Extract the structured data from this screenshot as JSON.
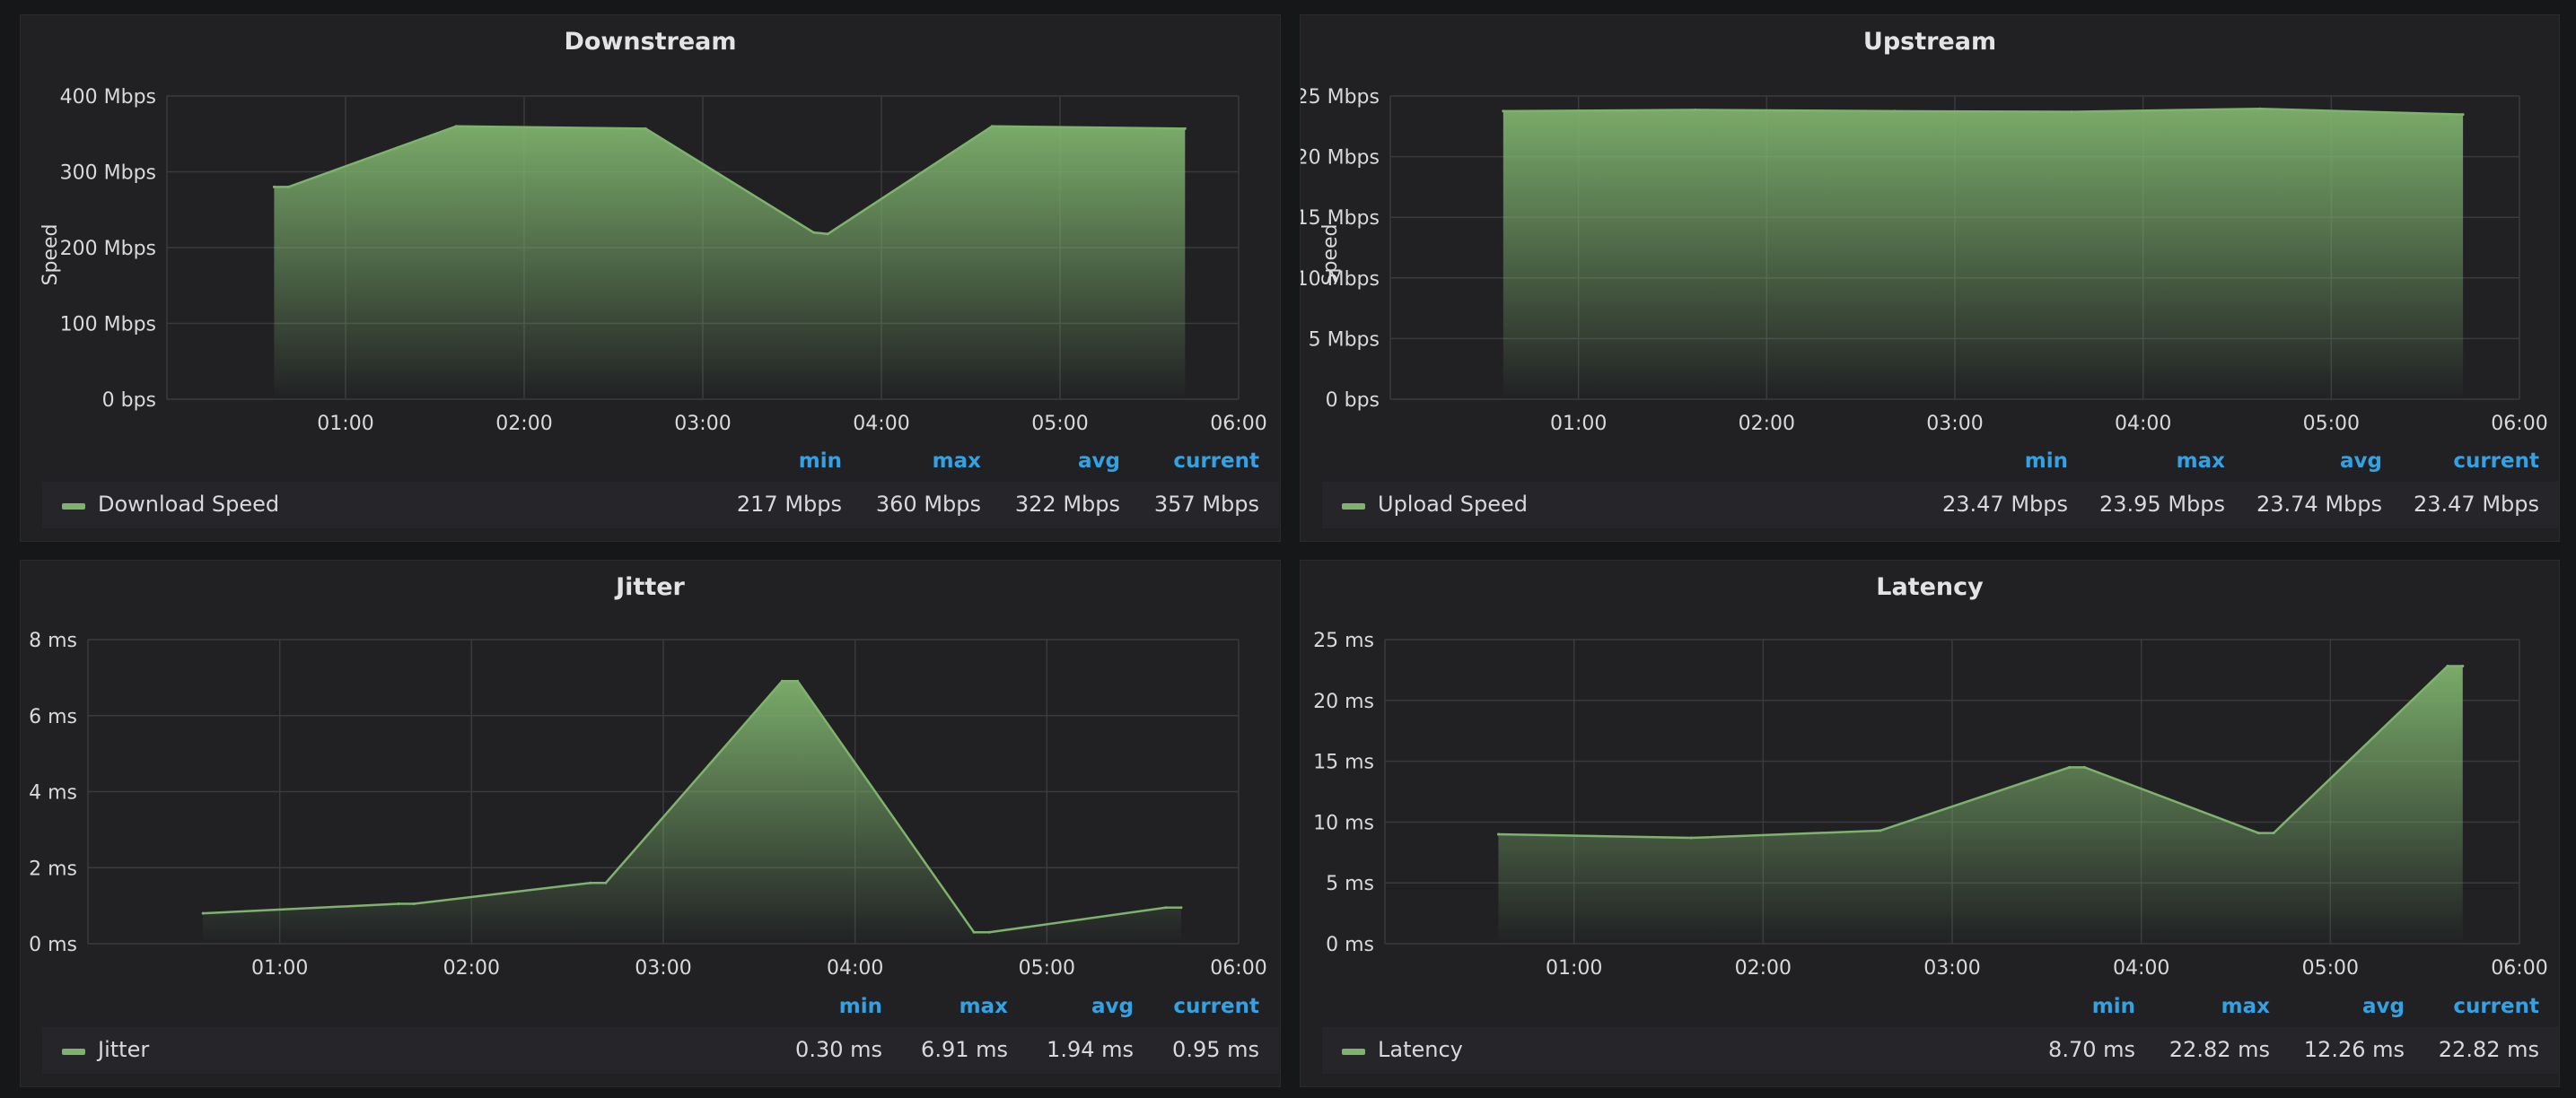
{
  "colors": {
    "series": "#7eb26d",
    "grid": "#3a3a3d",
    "legend_header": "#33a2e5"
  },
  "legend_headers": {
    "min": "min",
    "max": "max",
    "avg": "avg",
    "current": "current"
  },
  "panels": {
    "downstream": {
      "title": "Downstream",
      "legend": {
        "name": "Download Speed",
        "min": "217 Mbps",
        "max": "360 Mbps",
        "avg": "322 Mbps",
        "current": "357 Mbps"
      }
    },
    "upstream": {
      "title": "Upstream",
      "legend": {
        "name": "Upload Speed",
        "min": "23.47 Mbps",
        "max": "23.95 Mbps",
        "avg": "23.74 Mbps",
        "current": "23.47 Mbps"
      }
    },
    "jitter": {
      "title": "Jitter",
      "legend": {
        "name": "Jitter",
        "min": "0.30 ms",
        "max": "6.91 ms",
        "avg": "1.94 ms",
        "current": "0.95 ms"
      }
    },
    "latency": {
      "title": "Latency",
      "legend": {
        "name": "Latency",
        "min": "8.70 ms",
        "max": "22.82 ms",
        "avg": "12.26 ms",
        "current": "22.82 ms"
      }
    }
  },
  "chart_data": [
    {
      "type": "area",
      "title": "Downstream",
      "ylabel": "Speed",
      "xlim": [
        0.0,
        6.0
      ],
      "ylim": [
        0,
        400
      ],
      "x_ticks": [
        1,
        2,
        3,
        4,
        5,
        6
      ],
      "x_tick_labels": [
        "01:00",
        "02:00",
        "03:00",
        "04:00",
        "05:00",
        "06:00"
      ],
      "y_ticks": [
        0,
        100,
        200,
        300,
        400
      ],
      "y_tick_labels": [
        "0 bps",
        "100 Mbps",
        "200 Mbps",
        "300 Mbps",
        "400 Mbps"
      ],
      "grid": true,
      "legend_position": "bottom",
      "series": [
        {
          "name": "Download Speed",
          "x": [
            0.6,
            0.68,
            1.62,
            2.68,
            3.62,
            3.7,
            4.62,
            5.7
          ],
          "y": [
            280,
            280,
            360,
            357,
            220,
            218,
            360,
            357
          ]
        }
      ]
    },
    {
      "type": "area",
      "title": "Upstream",
      "ylabel": "Speed",
      "xlim": [
        0.0,
        6.0
      ],
      "ylim": [
        0,
        25
      ],
      "x_ticks": [
        1,
        2,
        3,
        4,
        5,
        6
      ],
      "x_tick_labels": [
        "01:00",
        "02:00",
        "03:00",
        "04:00",
        "05:00",
        "06:00"
      ],
      "y_ticks": [
        0,
        5,
        10,
        15,
        20,
        25
      ],
      "y_tick_labels": [
        "0 bps",
        "5 Mbps",
        "10 Mbps",
        "15 Mbps",
        "20 Mbps",
        "25 Mbps"
      ],
      "grid": true,
      "legend_position": "bottom",
      "series": [
        {
          "name": "Upload Speed",
          "x": [
            0.6,
            1.62,
            2.68,
            3.62,
            4.62,
            5.7
          ],
          "y": [
            23.75,
            23.85,
            23.75,
            23.7,
            23.95,
            23.47
          ]
        }
      ]
    },
    {
      "type": "area",
      "title": "Jitter",
      "xlim": [
        0.0,
        6.0
      ],
      "ylim": [
        0,
        8
      ],
      "x_ticks": [
        1,
        2,
        3,
        4,
        5,
        6
      ],
      "x_tick_labels": [
        "01:00",
        "02:00",
        "03:00",
        "04:00",
        "05:00",
        "06:00"
      ],
      "y_ticks": [
        0,
        2,
        4,
        6,
        8
      ],
      "y_tick_labels": [
        "0 ms",
        "2 ms",
        "4 ms",
        "6 ms",
        "8 ms"
      ],
      "grid": true,
      "legend_position": "bottom",
      "series": [
        {
          "name": "Jitter",
          "x": [
            0.6,
            1.62,
            1.7,
            2.62,
            2.7,
            3.62,
            3.7,
            4.62,
            4.7,
            5.62,
            5.7
          ],
          "y": [
            0.8,
            1.05,
            1.05,
            1.6,
            1.6,
            6.91,
            6.91,
            0.3,
            0.3,
            0.95,
            0.95
          ]
        }
      ]
    },
    {
      "type": "area",
      "title": "Latency",
      "xlim": [
        0.0,
        6.0
      ],
      "ylim": [
        0,
        25
      ],
      "x_ticks": [
        1,
        2,
        3,
        4,
        5,
        6
      ],
      "x_tick_labels": [
        "01:00",
        "02:00",
        "03:00",
        "04:00",
        "05:00",
        "06:00"
      ],
      "y_ticks": [
        0,
        5,
        10,
        15,
        20,
        25
      ],
      "y_tick_labels": [
        "0 ms",
        "5 ms",
        "10 ms",
        "15 ms",
        "20 ms",
        "25 ms"
      ],
      "grid": true,
      "legend_position": "bottom",
      "series": [
        {
          "name": "Latency",
          "x": [
            0.6,
            1.62,
            2.62,
            3.62,
            3.7,
            4.62,
            4.7,
            5.62,
            5.7
          ],
          "y": [
            9.0,
            8.7,
            9.3,
            14.5,
            14.5,
            9.1,
            9.1,
            22.82,
            22.82
          ]
        }
      ]
    }
  ]
}
